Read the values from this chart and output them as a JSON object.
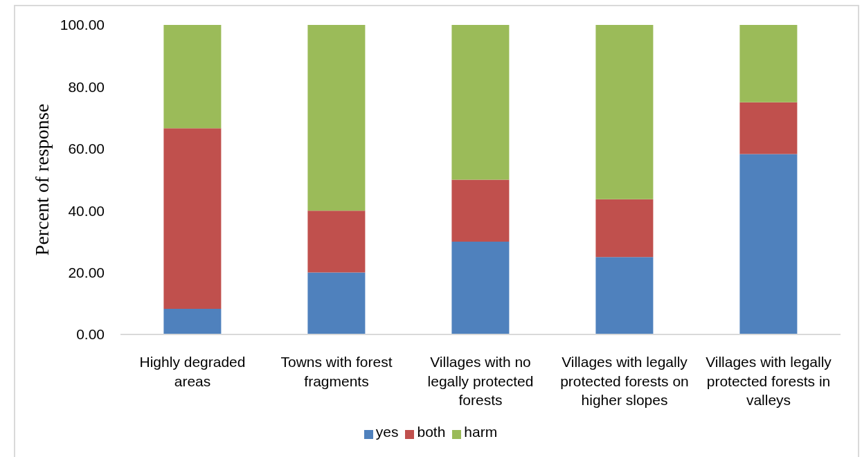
{
  "chart_data": {
    "type": "bar",
    "ylabel": "Percent of response",
    "categories": [
      "Highly degraded areas",
      "Towns with forest fragments",
      "Villages with no legally protected forests",
      "Villages with legally protected forests on higher slopes",
      "Villages with legally protected forests in valleys"
    ],
    "series": [
      {
        "name": "yes",
        "color": "#4f81bd",
        "values": [
          8.3,
          20,
          30,
          25,
          58.3
        ]
      },
      {
        "name": "both",
        "color": "#c0504d",
        "values": [
          58.3,
          20,
          20,
          18.7,
          16.7
        ]
      },
      {
        "name": "harm",
        "color": "#9bbb59",
        "values": [
          33.4,
          60,
          50,
          56.3,
          25
        ]
      }
    ],
    "stacked": true,
    "ylim": [
      0,
      100
    ],
    "yticks": [
      {
        "value": 0,
        "label": "0.00"
      },
      {
        "value": 20,
        "label": "20.00"
      },
      {
        "value": 40,
        "label": "40.00"
      },
      {
        "value": 60,
        "label": "60.00"
      },
      {
        "value": 80,
        "label": "80.00"
      },
      {
        "value": 100,
        "label": "100.00"
      }
    ],
    "legend": "bottom"
  }
}
